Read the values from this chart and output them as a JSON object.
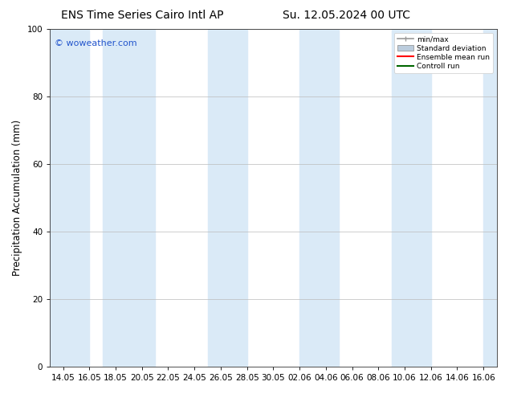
{
  "title_left": "ENS Time Series Cairo Intl AP",
  "title_right": "Su. 12.05.2024 00 UTC",
  "ylabel": "Precipitation Accumulation (mm)",
  "ylim": [
    0,
    100
  ],
  "yticks": [
    0,
    20,
    40,
    60,
    80,
    100
  ],
  "x_tick_labels": [
    "14.05",
    "16.05",
    "18.05",
    "20.05",
    "22.05",
    "24.05",
    "26.05",
    "28.05",
    "30.05",
    "02.06",
    "04.06",
    "06.06",
    "08.06",
    "10.06",
    "12.06",
    "14.06",
    "16.06"
  ],
  "watermark": "© woweather.com",
  "watermark_color": "#2255cc",
  "background_color": "#ffffff",
  "plot_bg_color": "#ffffff",
  "band_color": "#daeaf7",
  "legend_labels": [
    "min/max",
    "Standard deviation",
    "Ensemble mean run",
    "Controll run"
  ],
  "legend_colors": [
    "#999999",
    "#bbccdd",
    "#ff0000",
    "#006600"
  ],
  "title_fontsize": 10,
  "tick_fontsize": 7.5,
  "ylabel_fontsize": 8.5
}
